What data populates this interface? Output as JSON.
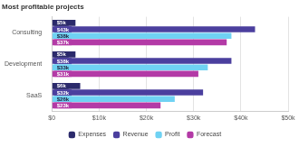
{
  "chart_data": {
    "type": "bar",
    "title": "Most profitable projects",
    "orientation": "horizontal",
    "categories": [
      "Consulting",
      "Development",
      "SaaS"
    ],
    "series": [
      {
        "name": "Expenses",
        "color": "#2b2a6b",
        "values": [
          5000,
          5000,
          6000
        ],
        "value_labels": [
          "$5k",
          "$5k",
          "$6k"
        ]
      },
      {
        "name": "Revenue",
        "color": "#4b3f9e",
        "values": [
          43000,
          38000,
          32000
        ],
        "value_labels": [
          "$43k",
          "$38k",
          "$32k"
        ]
      },
      {
        "name": "Profit",
        "color": "#6fd2f3",
        "values": [
          38000,
          33000,
          26000
        ],
        "value_labels": [
          "$38k",
          "$33k",
          "$26k"
        ]
      },
      {
        "name": "Forecast",
        "color": "#b33aa6",
        "values": [
          37000,
          31000,
          23000
        ],
        "value_labels": [
          "$37k",
          "$31k",
          "$23k"
        ]
      }
    ],
    "xlim": [
      0,
      50000
    ],
    "xticks": [
      {
        "value": 0,
        "label": "$0"
      },
      {
        "value": 10000,
        "label": "$10k"
      },
      {
        "value": 20000,
        "label": "$20k"
      },
      {
        "value": 30000,
        "label": "$30k"
      },
      {
        "value": 40000,
        "label": "$40k"
      },
      {
        "value": 50000,
        "label": "$50k"
      }
    ],
    "grid": true,
    "legend": "bottom",
    "data_labels": true
  }
}
